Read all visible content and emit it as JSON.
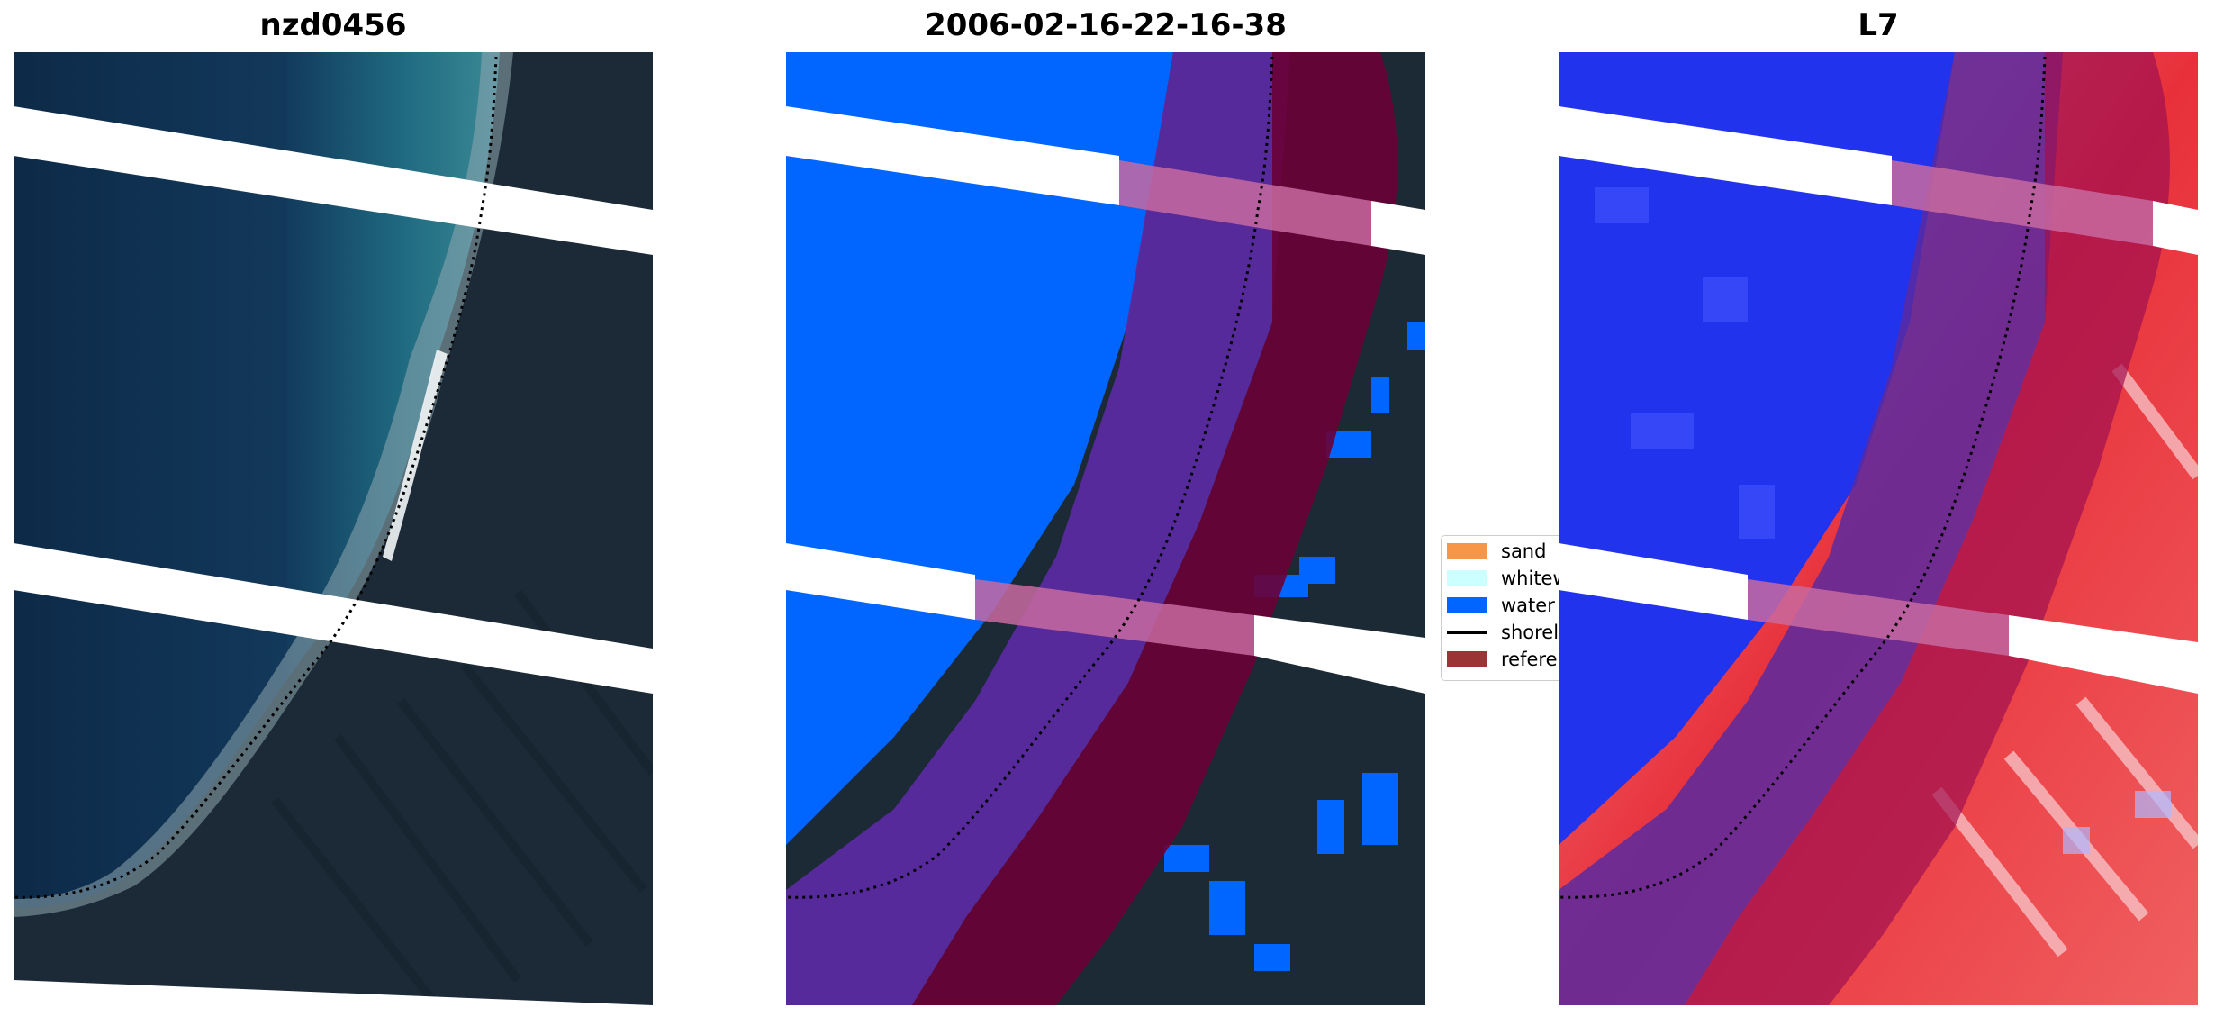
{
  "figure": {
    "panels": [
      {
        "title": "nzd0456",
        "image": "rgb-satellite-image"
      },
      {
        "title": "2006-02-16-22-16-38",
        "image": "classified-image"
      },
      {
        "title": "L7",
        "image": "mndwi-image"
      }
    ]
  },
  "legend": {
    "placement": "center",
    "items": [
      {
        "label": "sand",
        "color": "#f79646",
        "kind": "patch"
      },
      {
        "label": "whitewater",
        "color": "#ccffff",
        "kind": "patch"
      },
      {
        "label": "water",
        "color": "#0066ff",
        "kind": "patch"
      },
      {
        "label": "shoreline",
        "color": "#000000",
        "kind": "line"
      },
      {
        "label": "reference",
        "color": "#9b3535",
        "kind": "patch"
      }
    ]
  },
  "colors": {
    "water_deep": "#0c2b4a",
    "land_dark": "#1c2a35",
    "water_class": "#0066ff",
    "buffer_overlay": "#6a0035",
    "reference_purple": "#5a2aa0",
    "mndwi_water": "#2233ee",
    "mndwi_land": "#e8303a"
  }
}
